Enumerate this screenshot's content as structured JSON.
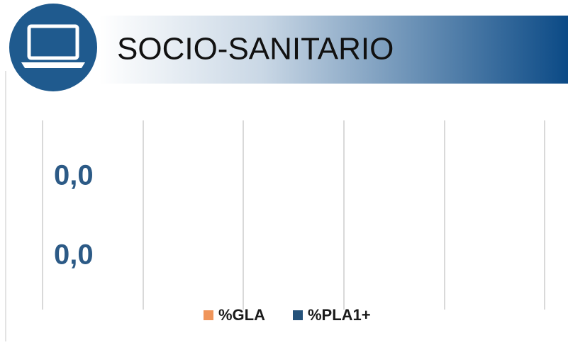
{
  "chart_data": {
    "type": "bar",
    "orientation": "horizontal",
    "title": "SOCIO-SANITARIO",
    "categories": [
      null
    ],
    "series": [
      {
        "name": "%GLA",
        "color": "#f0955a",
        "values": [
          0
        ],
        "value_labels": [
          "0,0"
        ]
      },
      {
        "name": "%PLA1+",
        "color": "#25527a",
        "values": [
          0
        ],
        "value_labels": [
          "0,0"
        ]
      }
    ],
    "legend": "bottom"
  }
}
